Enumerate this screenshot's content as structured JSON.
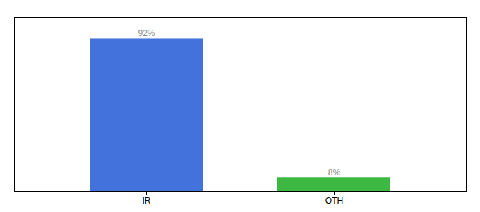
{
  "chart_data": {
    "type": "bar",
    "categories": [
      "IR",
      "OTH"
    ],
    "values": [
      92,
      8
    ],
    "value_labels": [
      "92%",
      "8%"
    ],
    "colors": [
      "#4472DD",
      "#3CB843"
    ],
    "ylim": [
      0,
      105
    ],
    "data_labels": true,
    "tick_labels": "x"
  }
}
